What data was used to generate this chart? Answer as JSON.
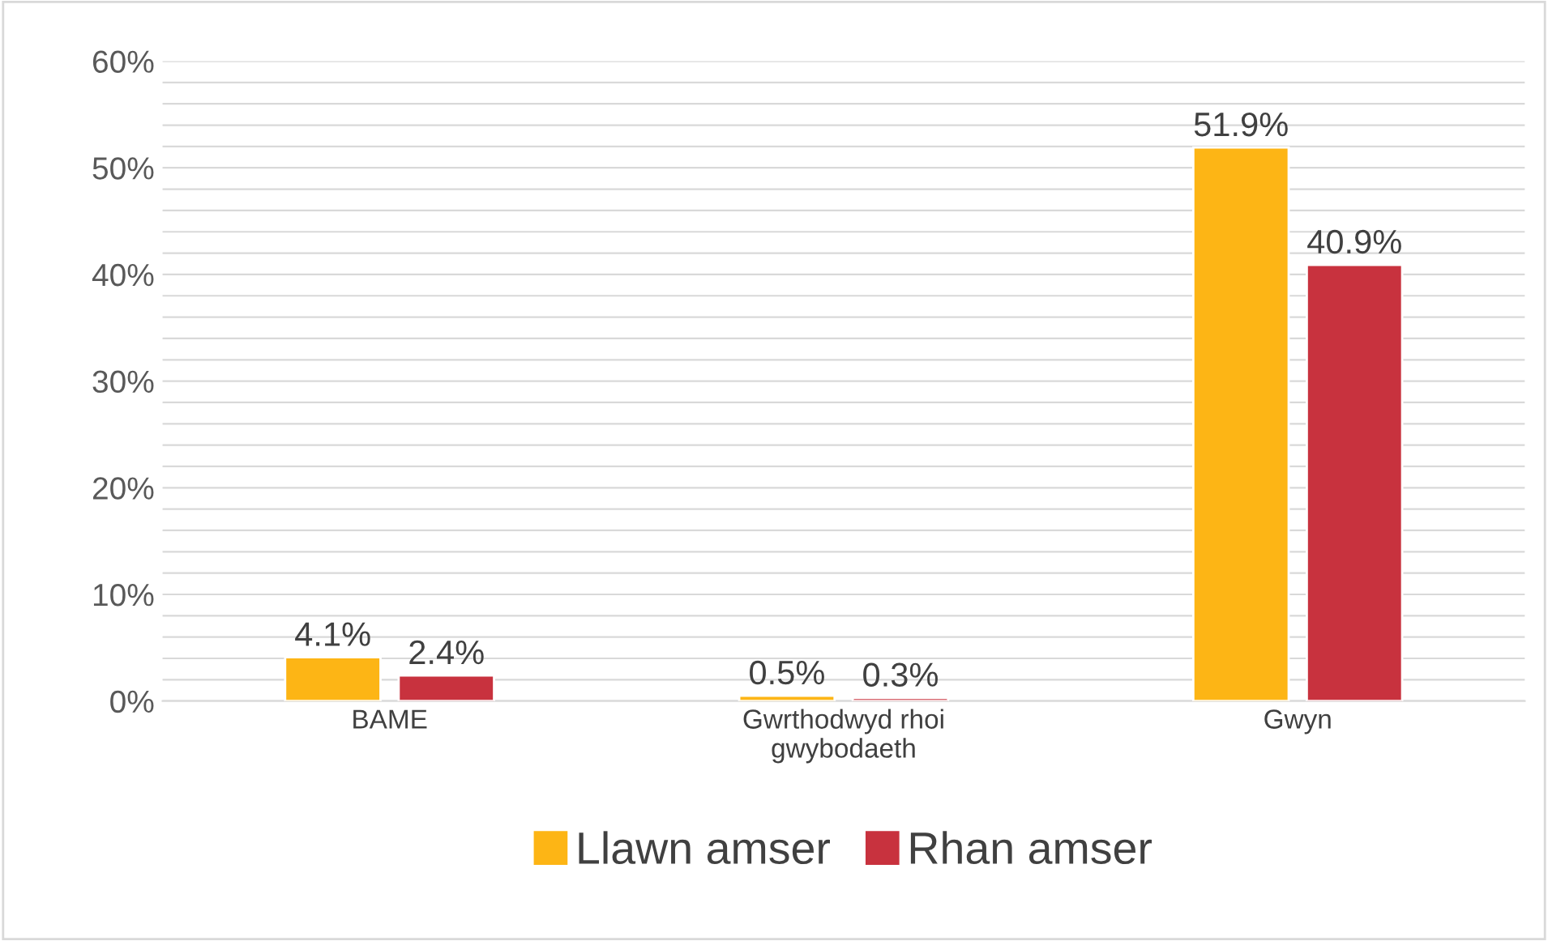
{
  "chart_data": {
    "type": "bar",
    "categories": [
      "BAME",
      "Gwrthodwyd rhoi\ngwybodaeth",
      "Gwyn"
    ],
    "series": [
      {
        "name": "Llawn amser",
        "color": "#fdb515",
        "values": [
          4.1,
          0.5,
          51.9
        ],
        "value_labels": [
          "4.1%",
          "0.5%",
          "51.9%"
        ]
      },
      {
        "name": "Rhan amser",
        "color": "#c8323e",
        "values": [
          2.4,
          0.3,
          40.9
        ],
        "value_labels": [
          "2.4%",
          "0.3%",
          "40.9%"
        ]
      }
    ],
    "ylim": [
      0,
      60
    ],
    "yticks": [
      {
        "value": 0,
        "label": "0%"
      },
      {
        "value": 2,
        "label": null
      },
      {
        "value": 4,
        "label": null
      },
      {
        "value": 6,
        "label": null
      },
      {
        "value": 8,
        "label": null
      },
      {
        "value": 10,
        "label": "10%"
      },
      {
        "value": 12,
        "label": null
      },
      {
        "value": 14,
        "label": null
      },
      {
        "value": 16,
        "label": null
      },
      {
        "value": 18,
        "label": null
      },
      {
        "value": 20,
        "label": "20%"
      },
      {
        "value": 22,
        "label": null
      },
      {
        "value": 24,
        "label": null
      },
      {
        "value": 26,
        "label": null
      },
      {
        "value": 28,
        "label": null
      },
      {
        "value": 30,
        "label": "30%"
      },
      {
        "value": 32,
        "label": null
      },
      {
        "value": 34,
        "label": null
      },
      {
        "value": 36,
        "label": null
      },
      {
        "value": 38,
        "label": null
      },
      {
        "value": 40,
        "label": "40%"
      },
      {
        "value": 42,
        "label": null
      },
      {
        "value": 44,
        "label": null
      },
      {
        "value": 46,
        "label": null
      },
      {
        "value": 48,
        "label": null
      },
      {
        "value": 50,
        "label": "50%"
      },
      {
        "value": 52,
        "label": null
      },
      {
        "value": 54,
        "label": null
      },
      {
        "value": 56,
        "label": null
      },
      {
        "value": 58,
        "label": null
      },
      {
        "value": 60,
        "label": "60%"
      }
    ],
    "grid": "y",
    "legend": "bottom"
  }
}
